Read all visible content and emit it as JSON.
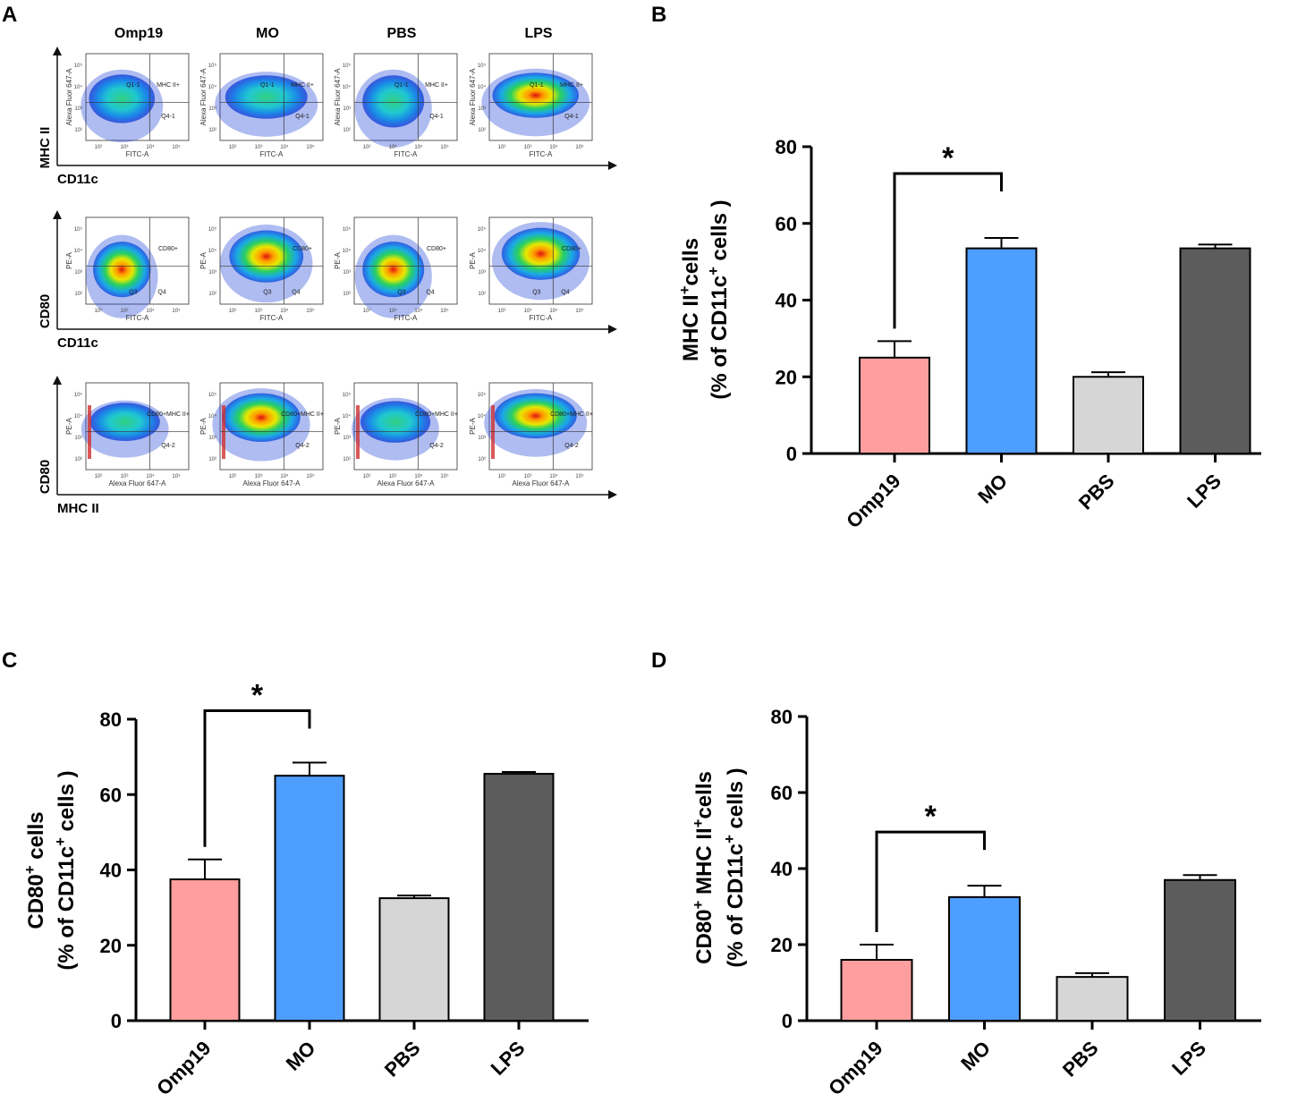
{
  "panel_letters": {
    "a": "A",
    "b": "B",
    "c": "C",
    "d": "D"
  },
  "flow": {
    "groups": [
      "Omp19",
      "MO",
      "PBS",
      "LPS"
    ],
    "rows": [
      {
        "y_axis": "MHC II",
        "x_axis": "CD11c",
        "plot_x_label": "FITC-A",
        "plot_y_label": "Alexa Fluor 647-A",
        "gates": [
          "Q1-1",
          "MHC II+",
          "Q4-1"
        ]
      },
      {
        "y_axis": "CD80",
        "x_axis": "CD11c",
        "plot_x_label": "FITC-A",
        "plot_y_label": "PE-A",
        "gates": [
          "Q3",
          "CD80+",
          "Q4"
        ]
      },
      {
        "y_axis": "CD80",
        "x_axis": "MHC II",
        "plot_x_label": "Alexa Fluor 647-A",
        "plot_y_label": "PE-A",
        "gates": [
          "",
          "CD80+MHC II+",
          "Q4-2"
        ]
      }
    ],
    "tick_labels": [
      "10²",
      "10³",
      "10⁴",
      "10⁵"
    ]
  },
  "chart_data": [
    {
      "panel": "B",
      "type": "bar",
      "categories": [
        "Omp19",
        "MO",
        "PBS",
        "LPS"
      ],
      "values": [
        25,
        53.5,
        20,
        53.5
      ],
      "errors": [
        4.3,
        2.7,
        1.2,
        1.0
      ],
      "colors": [
        "#FF9E9E",
        "#4D9EFF",
        "#D6D6D6",
        "#5C5C5C"
      ],
      "ylabel_line1": {
        "pre": "MHC II",
        "sup": "+",
        "post": "cells"
      },
      "ylabel_line2": {
        "pre": "(% of CD11c",
        "sup": "+",
        "post": " cells )"
      },
      "ylim": [
        0,
        80
      ],
      "yticks": [
        0,
        20,
        40,
        60,
        80
      ],
      "significance": {
        "from": "Omp19",
        "to": "MO",
        "label": "*"
      }
    },
    {
      "panel": "C",
      "type": "bar",
      "categories": [
        "Omp19",
        "MO",
        "PBS",
        "LPS"
      ],
      "values": [
        37.5,
        65,
        32.5,
        65.5
      ],
      "errors": [
        5.3,
        3.5,
        0.7,
        0.5
      ],
      "colors": [
        "#FF9E9E",
        "#4D9EFF",
        "#D6D6D6",
        "#5C5C5C"
      ],
      "ylabel_line1": {
        "pre": "CD80",
        "sup": "+",
        "post": " cells"
      },
      "ylabel_line2": {
        "pre": "(% of CD11c",
        "sup": "+",
        "post": " cells )"
      },
      "ylim": [
        0,
        80
      ],
      "yticks": [
        0,
        20,
        40,
        60,
        80
      ],
      "significance": {
        "from": "Omp19",
        "to": "MO",
        "label": "*"
      }
    },
    {
      "panel": "D",
      "type": "bar",
      "categories": [
        "Omp19",
        "MO",
        "PBS",
        "LPS"
      ],
      "values": [
        16,
        32.5,
        11.5,
        37
      ],
      "errors": [
        4.0,
        3.0,
        1.0,
        1.3
      ],
      "colors": [
        "#FF9E9E",
        "#4D9EFF",
        "#D6D6D6",
        "#5C5C5C"
      ],
      "ylabel_line1": {
        "pre": "CD80",
        "sup": "+",
        "post": " MHC II",
        "sup2": "+",
        "post2": "cells"
      },
      "ylabel_line2": {
        "pre": "(% of CD11c",
        "sup": "+",
        "post": " cells )"
      },
      "ylim": [
        0,
        80
      ],
      "yticks": [
        0,
        20,
        40,
        60,
        80
      ],
      "significance": {
        "from": "Omp19",
        "to": "MO",
        "label": "*"
      }
    }
  ]
}
